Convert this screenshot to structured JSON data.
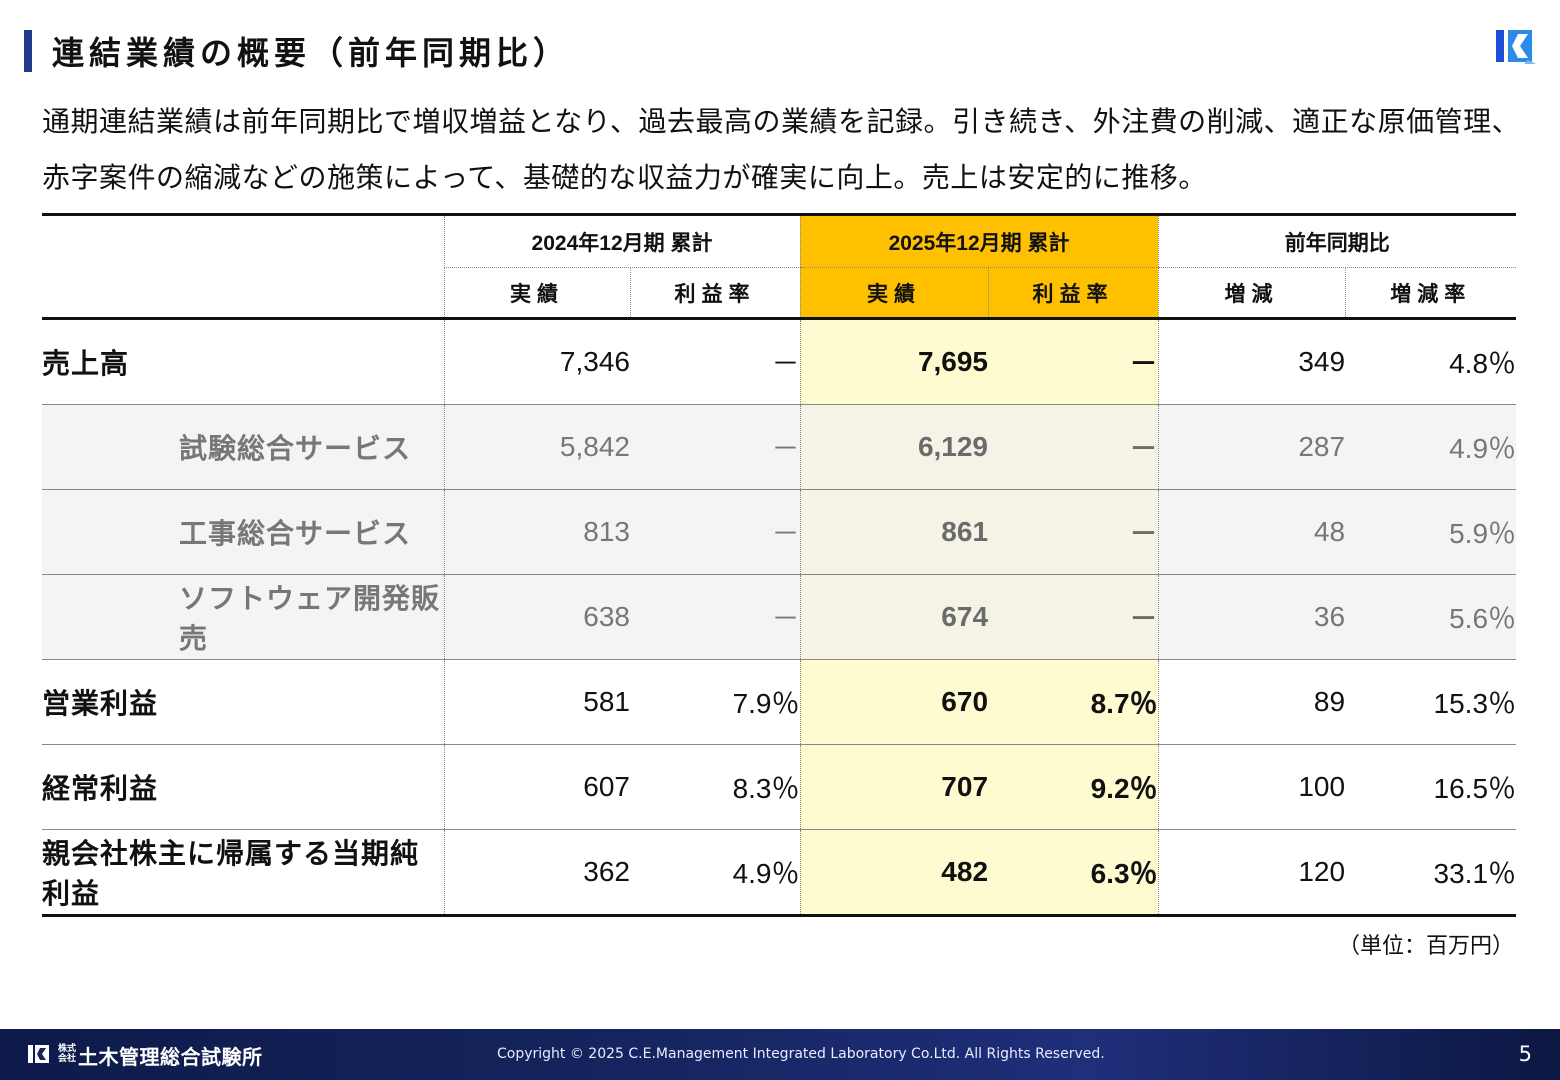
{
  "page": {
    "title": "連結業績の概要（前年同期比）",
    "summary": "通期連結業績は前年同期比で増収増益となり、過去最高の業績を記録。引き続き、外注費の削減、適正な原価管理、赤字案件の縮減などの施策によって、基礎的な収益力が確実に向上。売上は安定的に推移。"
  },
  "table": {
    "period_prev": "2024年12月期 累計",
    "period_cur": "2025年12月期 累計",
    "period_diff": "前年同期比",
    "col_actual": "実績",
    "col_margin": "利益率",
    "col_change": "増減",
    "col_change_rate": "増減率",
    "rows": [
      {
        "label": "売上高",
        "prev": "7,346",
        "prev_margin": "－",
        "cur": "7,695",
        "cur_margin": "－",
        "change": "349",
        "change_rate": "4.8％"
      },
      {
        "label": "試験総合サービス",
        "prev": "5,842",
        "prev_margin": "－",
        "cur": "6,129",
        "cur_margin": "－",
        "change": "287",
        "change_rate": "4.9％"
      },
      {
        "label": "工事総合サービス",
        "prev": "813",
        "prev_margin": "－",
        "cur": "861",
        "cur_margin": "－",
        "change": "48",
        "change_rate": "5.9％"
      },
      {
        "label": "ソフトウェア開発販売",
        "prev": "638",
        "prev_margin": "－",
        "cur": "674",
        "cur_margin": "－",
        "change": "36",
        "change_rate": "5.6％"
      },
      {
        "label": "営業利益",
        "prev": "581",
        "prev_margin": "7.9％",
        "cur": "670",
        "cur_margin": "8.7％",
        "change": "89",
        "change_rate": "15.3％"
      },
      {
        "label": "経常利益",
        "prev": "607",
        "prev_margin": "8.3％",
        "cur": "707",
        "cur_margin": "9.2％",
        "change": "100",
        "change_rate": "16.5％"
      },
      {
        "label": "親会社株主に帰属する当期純利益",
        "prev": "362",
        "prev_margin": "4.9％",
        "cur": "482",
        "cur_margin": "6.3％",
        "change": "120",
        "change_rate": "33.1％"
      }
    ],
    "unit": "（単位：百万円）"
  },
  "footer": {
    "corp_small": "株式会社",
    "corp_name": "土木管理総合試験所",
    "copyright": "Copyright © 2025 C.E.Management Integrated Laboratory Co.Ltd. All Rights Reserved.",
    "page_number": "5"
  },
  "colors": {
    "accent_bar": "#1f3a8a",
    "highlight_header": "#ffc000",
    "highlight_cells": "#fffbd0",
    "footer": "#15245e"
  },
  "icons": {
    "logo": "company-logo-icon"
  }
}
